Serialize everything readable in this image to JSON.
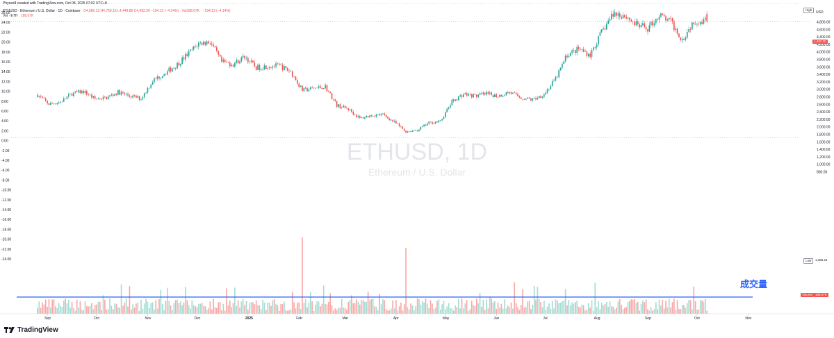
{
  "header": {
    "credit": "Phyesd4 created with TradingView.com, Oct 08, 2025 07:02 UTC+8",
    "symbol_line": "ETHUSD · Ethereum / U.S. Dollar · 1D · Coinbase",
    "ohlc": "O4,686.13 H4,759.16 L4,449.86 C4,492.20 −194.13 (−4.14%)",
    "vol": "Vol188.07K",
    "chg": "−194.13 (−4.14%)",
    "vol_line_label": "Vol · ETH",
    "vol_line_value": "188.07K"
  },
  "watermark": {
    "title": "ETHUSD, 1D",
    "subtitle": "Ethereum / U.S. Dollar"
  },
  "annotation": {
    "text": "成交量"
  },
  "right_axis": {
    "currency": "USD",
    "labels": [
      "4,800.00",
      "4,600.00",
      "4,400.00",
      "4,200.00",
      "4,000.00",
      "3,800.00",
      "3,600.00",
      "3,400.00",
      "3,200.00",
      "3,000.00",
      "2,800.00",
      "2,600.00",
      "2,400.00",
      "2,200.00",
      "2,000.00",
      "1,800.00",
      "1,600.00",
      "1,400.00",
      "1,200.00",
      "1,000.00",
      "800.00"
    ],
    "high_tag": "High",
    "current_price": "4,492.20",
    "low_tag": "Low",
    "low_value": "1,385.24",
    "volume_tag": "Volume",
    "volume_value": "188.07K"
  },
  "left_axis": {
    "labels": [
      "26.00",
      "24.00",
      "22.00",
      "20.00",
      "18.00",
      "16.00",
      "14.00",
      "12.00",
      "10.00",
      "8.00",
      "6.00",
      "4.00",
      "2.00",
      "0.00",
      "-2.00",
      "-4.00",
      "-6.00",
      "-8.00",
      "-10.00",
      "-12.00",
      "-14.00",
      "-16.00",
      "-18.00",
      "-20.00",
      "-22.00",
      "-24.00"
    ]
  },
  "x_axis": {
    "labels": [
      "Sep",
      "Oct",
      "Nov",
      "Dec",
      "2025",
      "Feb",
      "Mar",
      "Apr",
      "May",
      "Jun",
      "Jul",
      "Aug",
      "Sep",
      "Oct",
      "Nov"
    ]
  },
  "footer": {
    "brand": "TradingView"
  },
  "colors": {
    "up": "#26a69a",
    "down": "#ef5350",
    "vol_up": "#a5dcd3",
    "vol_down": "#f7a9a7",
    "line": "#2962ff",
    "annotation": "#2962ff"
  },
  "chart_data": {
    "type": "candlestick",
    "symbol": "ETHUSD",
    "interval": "1D",
    "exchange": "Coinbase",
    "price_range": [
      780,
      4880
    ],
    "last_candle": {
      "open": 4686.13,
      "high": 4759.16,
      "low": 4449.86,
      "close": 4492.2,
      "change": -194.13,
      "change_pct": -4.14,
      "volume": "188.07K"
    },
    "high_line": 4955,
    "low": 1385.24,
    "weekly_close_path": [
      {
        "x": "2024-08-26",
        "close": 2530
      },
      {
        "x": "2024-09-02",
        "close": 2280
      },
      {
        "x": "2024-09-09",
        "close": 2340
      },
      {
        "x": "2024-09-16",
        "close": 2560
      },
      {
        "x": "2024-09-23",
        "close": 2620
      },
      {
        "x": "2024-09-30",
        "close": 2420
      },
      {
        "x": "2024-10-07",
        "close": 2450
      },
      {
        "x": "2024-10-14",
        "close": 2600
      },
      {
        "x": "2024-10-21",
        "close": 2500
      },
      {
        "x": "2024-10-28",
        "close": 2430
      },
      {
        "x": "2024-11-04",
        "close": 2900
      },
      {
        "x": "2024-11-11",
        "close": 3100
      },
      {
        "x": "2024-11-18",
        "close": 3300
      },
      {
        "x": "2024-11-25",
        "close": 3600
      },
      {
        "x": "2024-12-02",
        "close": 3900
      },
      {
        "x": "2024-12-09",
        "close": 3950
      },
      {
        "x": "2024-12-16",
        "close": 3400
      },
      {
        "x": "2024-12-23",
        "close": 3350
      },
      {
        "x": "2024-12-30",
        "close": 3550
      },
      {
        "x": "2025-01-06",
        "close": 3250
      },
      {
        "x": "2025-01-13",
        "close": 3300
      },
      {
        "x": "2025-01-20",
        "close": 3300
      },
      {
        "x": "2025-01-27",
        "close": 3150
      },
      {
        "x": "2025-02-03",
        "close": 2650
      },
      {
        "x": "2025-02-10",
        "close": 2700
      },
      {
        "x": "2025-02-17",
        "close": 2750
      },
      {
        "x": "2025-02-24",
        "close": 2250
      },
      {
        "x": "2025-03-03",
        "close": 2150
      },
      {
        "x": "2025-03-10",
        "close": 1900
      },
      {
        "x": "2025-03-17",
        "close": 1980
      },
      {
        "x": "2025-03-24",
        "close": 2000
      },
      {
        "x": "2025-03-31",
        "close": 1800
      },
      {
        "x": "2025-04-07",
        "close": 1550
      },
      {
        "x": "2025-04-14",
        "close": 1590
      },
      {
        "x": "2025-04-21",
        "close": 1780
      },
      {
        "x": "2025-04-28",
        "close": 1820
      },
      {
        "x": "2025-05-05",
        "close": 2350
      },
      {
        "x": "2025-05-12",
        "close": 2550
      },
      {
        "x": "2025-05-19",
        "close": 2500
      },
      {
        "x": "2025-05-26",
        "close": 2550
      },
      {
        "x": "2025-06-02",
        "close": 2500
      },
      {
        "x": "2025-06-09",
        "close": 2600
      },
      {
        "x": "2025-06-16",
        "close": 2450
      },
      {
        "x": "2025-06-23",
        "close": 2400
      },
      {
        "x": "2025-06-30",
        "close": 2550
      },
      {
        "x": "2025-07-07",
        "close": 2950
      },
      {
        "x": "2025-07-14",
        "close": 3600
      },
      {
        "x": "2025-07-21",
        "close": 3750
      },
      {
        "x": "2025-07-28",
        "close": 3600
      },
      {
        "x": "2025-08-04",
        "close": 4200
      },
      {
        "x": "2025-08-11",
        "close": 4700
      },
      {
        "x": "2025-08-18",
        "close": 4650
      },
      {
        "x": "2025-08-25",
        "close": 4400
      },
      {
        "x": "2025-09-01",
        "close": 4300
      },
      {
        "x": "2025-09-08",
        "close": 4650
      },
      {
        "x": "2025-09-15",
        "close": 4480
      },
      {
        "x": "2025-09-22",
        "close": 4000
      },
      {
        "x": "2025-09-29",
        "close": 4500
      },
      {
        "x": "2025-10-06",
        "close": 4492
      }
    ],
    "volume": {
      "series_name": "Volume",
      "mean_line": true
    }
  }
}
